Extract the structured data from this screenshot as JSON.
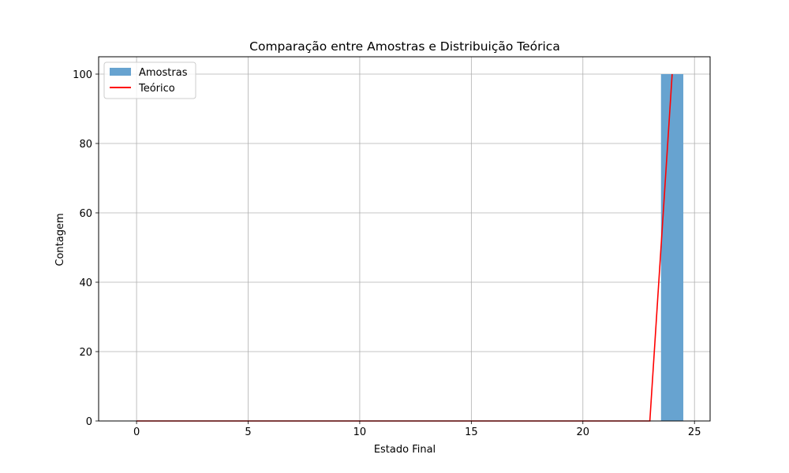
{
  "chart_data": {
    "type": "bar",
    "title": "Comparação entre Amostras e Distribuição Teórica",
    "xlabel": "Estado Final",
    "ylabel": "Contagem",
    "xlim": [
      -1.7,
      25.7
    ],
    "ylim": [
      0,
      105
    ],
    "xticks": [
      0,
      5,
      10,
      15,
      20,
      25
    ],
    "yticks": [
      0,
      20,
      40,
      60,
      80,
      100
    ],
    "grid": true,
    "legend_position": "upper-left",
    "bars": {
      "name": "Amostras",
      "color": "#67a3d0",
      "x_start": [
        23.5
      ],
      "x_end": [
        24.5
      ],
      "values": [
        100
      ]
    },
    "line": {
      "name": "Teórico",
      "color": "#ff0000",
      "x": [
        0,
        1,
        2,
        3,
        4,
        5,
        6,
        7,
        8,
        9,
        10,
        11,
        12,
        13,
        14,
        15,
        16,
        17,
        18,
        19,
        20,
        21,
        22,
        23,
        24
      ],
      "y": [
        0,
        0,
        0,
        0,
        0,
        0,
        0,
        0,
        0,
        0,
        0,
        0,
        0,
        0,
        0,
        0,
        0,
        0,
        0,
        0,
        0,
        0,
        0,
        0,
        100
      ]
    }
  }
}
